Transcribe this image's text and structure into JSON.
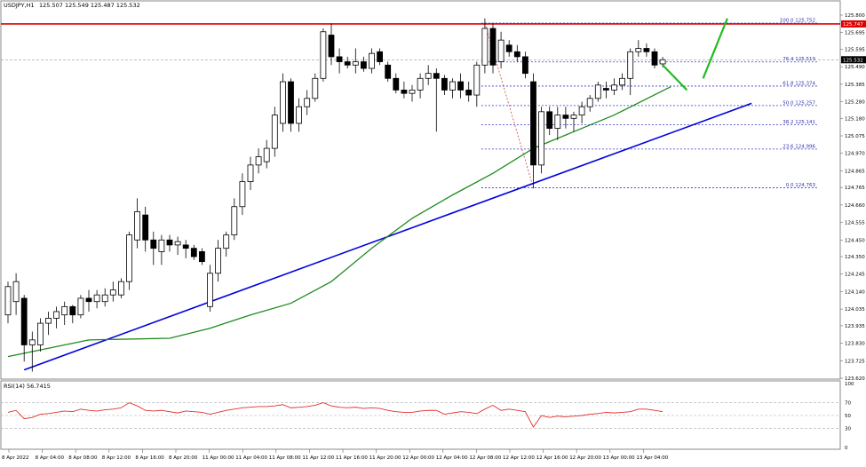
{
  "header": {
    "symbol": "USDJPY,H1",
    "ohlc": "125.507 125.549 125.487 125.532"
  },
  "rsi": {
    "label": "RSI(14) 56.7415",
    "levels": [
      "100",
      "70",
      "50",
      "30",
      "0"
    ]
  },
  "price_axis": {
    "ticks": [
      "125.800",
      "125.695",
      "125.595",
      "125.490",
      "125.385",
      "125.280",
      "125.180",
      "125.075",
      "124.970",
      "124.865",
      "124.765",
      "124.660",
      "124.555",
      "124.450",
      "124.350",
      "124.245",
      "124.140",
      "124.035",
      "123.935",
      "123.830",
      "123.725",
      "123.620"
    ],
    "current_price_tag": "125.532",
    "resistance_tag": "125.747"
  },
  "time_axis": {
    "labels": [
      "8 Apr 2022",
      "8 Apr 04:00",
      "8 Apr 08:00",
      "8 Apr 12:00",
      "8 Apr 16:00",
      "8 Apr 20:00",
      "11 Apr 00:00",
      "11 Apr 04:00",
      "11 Apr 08:00",
      "11 Apr 12:00",
      "11 Apr 16:00",
      "11 Apr 20:00",
      "12 Apr 00:00",
      "12 Apr 04:00",
      "12 Apr 08:00",
      "12 Apr 12:00",
      "12 Apr 16:00",
      "12 Apr 20:00",
      "13 Apr 00:00",
      "13 Apr 04:00"
    ]
  },
  "fib_levels": [
    {
      "label": "100.0 125.752",
      "price": 125.752
    },
    {
      "label": "76.4 125.519",
      "price": 125.519
    },
    {
      "label": "61.8 125.374",
      "price": 125.374
    },
    {
      "label": "50.0 125.257",
      "price": 125.257
    },
    {
      "label": "38.2 125.141",
      "price": 125.141
    },
    {
      "label": "23.6 124.996",
      "price": 124.996
    },
    {
      "label": "0.0 124.763",
      "price": 124.763
    }
  ],
  "colors": {
    "bull_candle": "#ffffff",
    "bear_candle": "#000000",
    "resistance_line": "#e00000",
    "trend_line": "#0000dd",
    "moving_average": "#1e8a1e",
    "fib_line": "#3333cc",
    "rsi_line": "#e03030",
    "projection": "#22bb22"
  },
  "chart_data": {
    "type": "candlestick",
    "price_range": [
      123.62,
      125.8
    ],
    "rsi_range": [
      0,
      100
    ],
    "candles": [
      {
        "o": 124.0,
        "h": 124.2,
        "l": 123.95,
        "c": 124.17
      },
      {
        "o": 124.08,
        "h": 124.25,
        "l": 124.0,
        "c": 124.2
      },
      {
        "o": 124.1,
        "h": 124.12,
        "l": 123.72,
        "c": 123.82
      },
      {
        "o": 123.82,
        "h": 123.9,
        "l": 123.66,
        "c": 123.85
      },
      {
        "o": 123.82,
        "h": 123.98,
        "l": 123.78,
        "c": 123.95
      },
      {
        "o": 123.95,
        "h": 124.02,
        "l": 123.88,
        "c": 123.98
      },
      {
        "o": 123.98,
        "h": 124.05,
        "l": 123.92,
        "c": 124.02
      },
      {
        "o": 124.0,
        "h": 124.08,
        "l": 123.94,
        "c": 124.05
      },
      {
        "o": 124.05,
        "h": 124.06,
        "l": 123.95,
        "c": 124.0
      },
      {
        "o": 124.0,
        "h": 124.12,
        "l": 123.98,
        "c": 124.1
      },
      {
        "o": 124.1,
        "h": 124.15,
        "l": 124.02,
        "c": 124.08
      },
      {
        "o": 124.08,
        "h": 124.15,
        "l": 124.04,
        "c": 124.12
      },
      {
        "o": 124.08,
        "h": 124.16,
        "l": 124.05,
        "c": 124.12
      },
      {
        "o": 124.12,
        "h": 124.2,
        "l": 124.08,
        "c": 124.15
      },
      {
        "o": 124.12,
        "h": 124.22,
        "l": 124.1,
        "c": 124.2
      },
      {
        "o": 124.2,
        "h": 124.5,
        "l": 124.15,
        "c": 124.48
      },
      {
        "o": 124.45,
        "h": 124.7,
        "l": 124.4,
        "c": 124.62
      },
      {
        "o": 124.6,
        "h": 124.65,
        "l": 124.38,
        "c": 124.45
      },
      {
        "o": 124.45,
        "h": 124.5,
        "l": 124.3,
        "c": 124.4
      },
      {
        "o": 124.38,
        "h": 124.48,
        "l": 124.3,
        "c": 124.45
      },
      {
        "o": 124.45,
        "h": 124.48,
        "l": 124.38,
        "c": 124.42
      },
      {
        "o": 124.42,
        "h": 124.47,
        "l": 124.36,
        "c": 124.44
      },
      {
        "o": 124.42,
        "h": 124.45,
        "l": 124.34,
        "c": 124.4
      },
      {
        "o": 124.4,
        "h": 124.42,
        "l": 124.33,
        "c": 124.35
      },
      {
        "o": 124.38,
        "h": 124.4,
        "l": 124.3,
        "c": 124.32
      },
      {
        "o": 124.05,
        "h": 124.3,
        "l": 124.02,
        "c": 124.25
      },
      {
        "o": 124.25,
        "h": 124.45,
        "l": 124.2,
        "c": 124.4
      },
      {
        "o": 124.4,
        "h": 124.5,
        "l": 124.35,
        "c": 124.48
      },
      {
        "o": 124.48,
        "h": 124.7,
        "l": 124.45,
        "c": 124.65
      },
      {
        "o": 124.65,
        "h": 124.85,
        "l": 124.6,
        "c": 124.8
      },
      {
        "o": 124.8,
        "h": 124.95,
        "l": 124.75,
        "c": 124.9
      },
      {
        "o": 124.9,
        "h": 125.0,
        "l": 124.85,
        "c": 124.95
      },
      {
        "o": 124.92,
        "h": 125.05,
        "l": 124.88,
        "c": 125.0
      },
      {
        "o": 125.0,
        "h": 125.25,
        "l": 124.95,
        "c": 125.2
      },
      {
        "o": 125.15,
        "h": 125.45,
        "l": 125.1,
        "c": 125.4
      },
      {
        "o": 125.4,
        "h": 125.42,
        "l": 125.1,
        "c": 125.15
      },
      {
        "o": 125.15,
        "h": 125.3,
        "l": 125.1,
        "c": 125.25
      },
      {
        "o": 125.25,
        "h": 125.35,
        "l": 125.2,
        "c": 125.3
      },
      {
        "o": 125.3,
        "h": 125.45,
        "l": 125.28,
        "c": 125.42
      },
      {
        "o": 125.42,
        "h": 125.72,
        "l": 125.4,
        "c": 125.7
      },
      {
        "o": 125.68,
        "h": 125.75,
        "l": 125.5,
        "c": 125.55
      },
      {
        "o": 125.55,
        "h": 125.6,
        "l": 125.45,
        "c": 125.52
      },
      {
        "o": 125.52,
        "h": 125.55,
        "l": 125.48,
        "c": 125.5
      },
      {
        "o": 125.5,
        "h": 125.6,
        "l": 125.45,
        "c": 125.52
      },
      {
        "o": 125.52,
        "h": 125.55,
        "l": 125.46,
        "c": 125.48
      },
      {
        "o": 125.48,
        "h": 125.6,
        "l": 125.45,
        "c": 125.57
      },
      {
        "o": 125.58,
        "h": 125.6,
        "l": 125.5,
        "c": 125.52
      },
      {
        "o": 125.5,
        "h": 125.52,
        "l": 125.4,
        "c": 125.42
      },
      {
        "o": 125.42,
        "h": 125.45,
        "l": 125.33,
        "c": 125.35
      },
      {
        "o": 125.35,
        "h": 125.4,
        "l": 125.3,
        "c": 125.33
      },
      {
        "o": 125.33,
        "h": 125.38,
        "l": 125.28,
        "c": 125.35
      },
      {
        "o": 125.35,
        "h": 125.45,
        "l": 125.3,
        "c": 125.42
      },
      {
        "o": 125.42,
        "h": 125.5,
        "l": 125.38,
        "c": 125.45
      },
      {
        "o": 125.45,
        "h": 125.48,
        "l": 125.1,
        "c": 125.42
      },
      {
        "o": 125.42,
        "h": 125.44,
        "l": 125.32,
        "c": 125.35
      },
      {
        "o": 125.35,
        "h": 125.42,
        "l": 125.3,
        "c": 125.4
      },
      {
        "o": 125.4,
        "h": 125.45,
        "l": 125.3,
        "c": 125.35
      },
      {
        "o": 125.35,
        "h": 125.4,
        "l": 125.28,
        "c": 125.32
      },
      {
        "o": 125.32,
        "h": 125.52,
        "l": 125.25,
        "c": 125.5
      },
      {
        "o": 125.5,
        "h": 125.78,
        "l": 125.45,
        "c": 125.72
      },
      {
        "o": 125.72,
        "h": 125.75,
        "l": 125.45,
        "c": 125.5
      },
      {
        "o": 125.52,
        "h": 125.7,
        "l": 125.48,
        "c": 125.65
      },
      {
        "o": 125.62,
        "h": 125.65,
        "l": 125.55,
        "c": 125.58
      },
      {
        "o": 125.58,
        "h": 125.62,
        "l": 125.52,
        "c": 125.55
      },
      {
        "o": 125.55,
        "h": 125.58,
        "l": 125.42,
        "c": 125.45
      },
      {
        "o": 125.4,
        "h": 125.45,
        "l": 124.76,
        "c": 124.9
      },
      {
        "o": 124.9,
        "h": 125.25,
        "l": 124.85,
        "c": 125.22
      },
      {
        "o": 125.22,
        "h": 125.25,
        "l": 125.08,
        "c": 125.12
      },
      {
        "o": 125.12,
        "h": 125.25,
        "l": 125.05,
        "c": 125.2
      },
      {
        "o": 125.2,
        "h": 125.25,
        "l": 125.12,
        "c": 125.18
      },
      {
        "o": 125.18,
        "h": 125.22,
        "l": 125.1,
        "c": 125.2
      },
      {
        "o": 125.2,
        "h": 125.28,
        "l": 125.15,
        "c": 125.25
      },
      {
        "o": 125.25,
        "h": 125.32,
        "l": 125.22,
        "c": 125.3
      },
      {
        "o": 125.3,
        "h": 125.4,
        "l": 125.28,
        "c": 125.38
      },
      {
        "o": 125.36,
        "h": 125.4,
        "l": 125.3,
        "c": 125.35
      },
      {
        "o": 125.35,
        "h": 125.42,
        "l": 125.32,
        "c": 125.38
      },
      {
        "o": 125.38,
        "h": 125.45,
        "l": 125.35,
        "c": 125.42
      },
      {
        "o": 125.42,
        "h": 125.6,
        "l": 125.32,
        "c": 125.58
      },
      {
        "o": 125.58,
        "h": 125.65,
        "l": 125.55,
        "c": 125.6
      },
      {
        "o": 125.6,
        "h": 125.63,
        "l": 125.55,
        "c": 125.58
      },
      {
        "o": 125.58,
        "h": 125.6,
        "l": 125.48,
        "c": 125.5
      },
      {
        "o": 125.507,
        "h": 125.549,
        "l": 125.487,
        "c": 125.532
      }
    ],
    "moving_average": [
      [
        0,
        123.75
      ],
      [
        10,
        123.85
      ],
      [
        20,
        123.86
      ],
      [
        25,
        123.92
      ],
      [
        30,
        124.0
      ],
      [
        35,
        124.07
      ],
      [
        40,
        124.2
      ],
      [
        45,
        124.4
      ],
      [
        50,
        124.58
      ],
      [
        55,
        124.72
      ],
      [
        60,
        124.85
      ],
      [
        65,
        125.0
      ],
      [
        70,
        125.1
      ],
      [
        75,
        125.2
      ],
      [
        82,
        125.37
      ]
    ],
    "trend_line": {
      "from": [
        2,
        123.67
      ],
      "to": [
        92,
        125.27
      ]
    },
    "resistance_price": 125.747,
    "fib_retracement_guide": {
      "from": [
        59,
        125.752
      ],
      "to": [
        65,
        124.763
      ]
    },
    "projection": [
      [
        81,
        125.5
      ],
      [
        84,
        125.35
      ],
      [
        86,
        125.42
      ],
      [
        89,
        125.78
      ]
    ],
    "rsi_values": [
      55,
      58,
      45,
      47,
      52,
      53,
      55,
      57,
      56,
      60,
      58,
      57,
      59,
      60,
      62,
      70,
      65,
      58,
      57,
      58,
      56,
      54,
      57,
      56,
      55,
      52,
      55,
      58,
      60,
      62,
      63,
      64,
      64,
      65,
      67,
      62,
      63,
      64,
      66,
      70,
      65,
      63,
      62,
      63,
      61,
      62,
      61,
      58,
      56,
      55,
      55,
      57,
      58,
      58,
      52,
      54,
      56,
      55,
      53,
      60,
      66,
      58,
      60,
      58,
      56,
      32,
      50,
      47,
      49,
      48,
      49,
      50,
      52,
      53,
      55,
      54,
      55,
      56,
      60,
      60,
      58,
      56
    ]
  }
}
